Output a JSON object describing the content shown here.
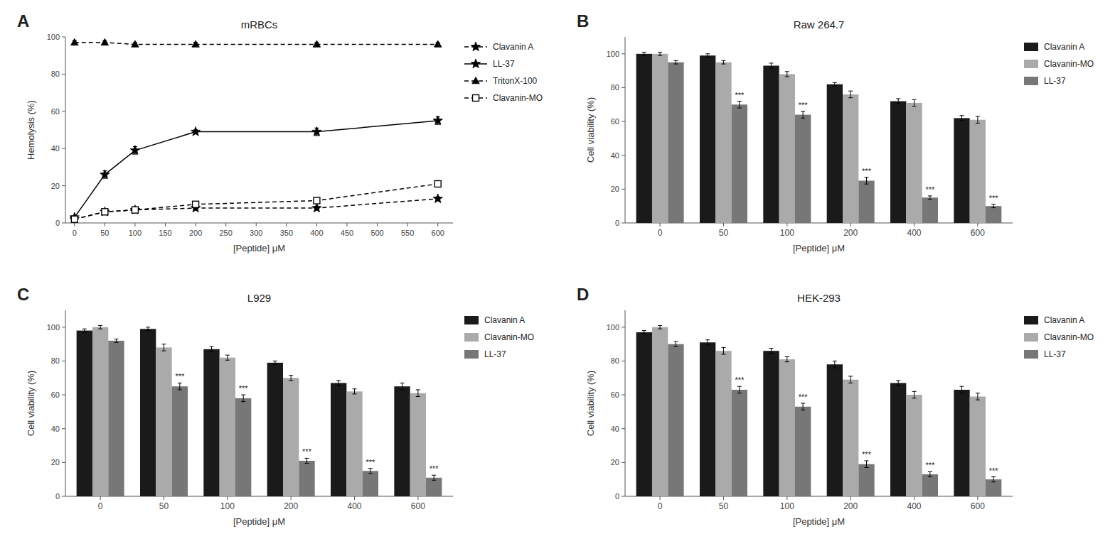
{
  "chart_data": [
    {
      "type": "line",
      "title": "mRBCs",
      "xlabel": "[Peptide] μM",
      "ylabel": "Hemolysis (%)",
      "annotations": [
        "A"
      ],
      "x": [
        0,
        50,
        100,
        200,
        400,
        600
      ],
      "xlim": [
        -15,
        625
      ],
      "xticks": [
        0,
        50,
        100,
        150,
        200,
        250,
        300,
        350,
        400,
        450,
        500,
        550,
        600
      ],
      "ylim": [
        0,
        100
      ],
      "yticks": [
        0,
        20,
        40,
        60,
        80,
        100
      ],
      "grid": false,
      "legend": "right",
      "series": [
        {
          "name": "Clavanin A",
          "color": "#000000",
          "marker": "star",
          "line_style": "dashed",
          "values": [
            2,
            6,
            7,
            8,
            8,
            13
          ],
          "errors": [
            0.5,
            1,
            1,
            1,
            1,
            1
          ]
        },
        {
          "name": "LL-37",
          "color": "#000000",
          "marker": "star",
          "line_style": "solid",
          "values": [
            3,
            26,
            39,
            49,
            49,
            55
          ],
          "errors": [
            0.5,
            2,
            2,
            1,
            2,
            2
          ]
        },
        {
          "name": "TritonX-100",
          "color": "#000000",
          "marker": "triangle",
          "line_style": "dashed",
          "values": [
            97,
            97,
            96,
            96,
            96,
            96
          ],
          "errors": [
            1,
            1,
            1,
            1,
            1,
            1
          ]
        },
        {
          "name": "Clavanin-MO",
          "color": "#000000",
          "marker": "open-square",
          "line_style": "dashed",
          "values": [
            2,
            6,
            7,
            10,
            12,
            21
          ],
          "errors": [
            0.5,
            1,
            1,
            1,
            1,
            1
          ]
        }
      ]
    },
    {
      "type": "bar",
      "title": "Raw 264.7",
      "xlabel": "[Peptide] μM",
      "ylabel": "Cell viability (%)",
      "annotations": [
        "B"
      ],
      "categories": [
        "0",
        "50",
        "100",
        "200",
        "400",
        "600"
      ],
      "ylim": [
        0,
        110
      ],
      "yticks": [
        0,
        20,
        40,
        60,
        80,
        100
      ],
      "grid": false,
      "legend": "right",
      "series": [
        {
          "name": "Clavanin A",
          "color": "#1a1a1a",
          "values": [
            100,
            99,
            93,
            82,
            72,
            62
          ],
          "errors": [
            1,
            1,
            1.5,
            1,
            1.5,
            1.5
          ]
        },
        {
          "name": "Clavanin-MO",
          "color": "#aaaaaa",
          "values": [
            100,
            95,
            88,
            76,
            71,
            61
          ],
          "errors": [
            1,
            1,
            1.5,
            2,
            2,
            2
          ]
        },
        {
          "name": "LL-37",
          "color": "#777777",
          "values": [
            95,
            70,
            64,
            25,
            15,
            10
          ],
          "errors": [
            1,
            2,
            2,
            2,
            1,
            1
          ],
          "annotations": [
            null,
            "***",
            "***",
            "***",
            "***",
            "***"
          ]
        }
      ]
    },
    {
      "type": "bar",
      "title": "L929",
      "xlabel": "[Peptide] μM",
      "ylabel": "Cell viability (%)",
      "annotations": [
        "C"
      ],
      "categories": [
        "0",
        "50",
        "100",
        "200",
        "400",
        "600"
      ],
      "ylim": [
        0,
        110
      ],
      "yticks": [
        0,
        20,
        40,
        60,
        80,
        100
      ],
      "grid": false,
      "legend": "right",
      "series": [
        {
          "name": "Clavanin A",
          "color": "#1a1a1a",
          "values": [
            98,
            99,
            87,
            79,
            67,
            65
          ],
          "errors": [
            1,
            1,
            1.5,
            1,
            1.5,
            2
          ]
        },
        {
          "name": "Clavanin-MO",
          "color": "#aaaaaa",
          "values": [
            100,
            88,
            82,
            70,
            62,
            61
          ],
          "errors": [
            1,
            2,
            1.5,
            1.5,
            1.5,
            2
          ]
        },
        {
          "name": "LL-37",
          "color": "#777777",
          "values": [
            92,
            65,
            58,
            21,
            15,
            11
          ],
          "errors": [
            1,
            2,
            2,
            1.5,
            1.5,
            1.5
          ],
          "annotations": [
            null,
            "***",
            "***",
            "***",
            "***",
            "***"
          ]
        }
      ]
    },
    {
      "type": "bar",
      "title": "HEK-293",
      "xlabel": "[Peptide] μM",
      "ylabel": "Cell viability (%)",
      "annotations": [
        "D"
      ],
      "categories": [
        "0",
        "50",
        "100",
        "200",
        "400",
        "600"
      ],
      "ylim": [
        0,
        110
      ],
      "yticks": [
        0,
        20,
        40,
        60,
        80,
        100
      ],
      "grid": false,
      "legend": "right",
      "series": [
        {
          "name": "Clavanin A",
          "color": "#1a1a1a",
          "values": [
            97,
            91,
            86,
            78,
            67,
            63
          ],
          "errors": [
            1,
            1.5,
            1.5,
            2,
            1.5,
            2
          ]
        },
        {
          "name": "Clavanin-MO",
          "color": "#aaaaaa",
          "values": [
            100,
            86,
            81,
            69,
            60,
            59
          ],
          "errors": [
            1,
            2,
            1.5,
            2,
            2,
            2
          ]
        },
        {
          "name": "LL-37",
          "color": "#777777",
          "values": [
            90,
            63,
            53,
            19,
            13,
            10
          ],
          "errors": [
            1.5,
            2,
            2,
            2,
            1.5,
            1.5
          ],
          "annotations": [
            null,
            "***",
            "***",
            "***",
            "***",
            "***"
          ]
        }
      ]
    }
  ]
}
